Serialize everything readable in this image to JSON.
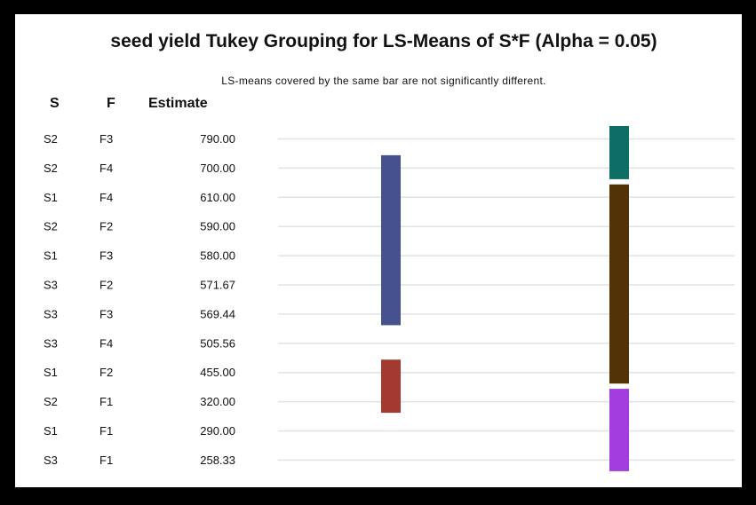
{
  "chart_data": {
    "type": "table",
    "title": "seed yield Tukey Grouping for LS-Means of S*F (Alpha = 0.05)",
    "subtitle": "LS-means covered by the same bar are not significantly different.",
    "columns": [
      "S",
      "F",
      "Estimate"
    ],
    "rows": [
      {
        "S": "S2",
        "F": "F3",
        "Estimate": "790.00"
      },
      {
        "S": "S2",
        "F": "F4",
        "Estimate": "700.00"
      },
      {
        "S": "S1",
        "F": "F4",
        "Estimate": "610.00"
      },
      {
        "S": "S2",
        "F": "F2",
        "Estimate": "590.00"
      },
      {
        "S": "S1",
        "F": "F3",
        "Estimate": "580.00"
      },
      {
        "S": "S3",
        "F": "F2",
        "Estimate": "571.67"
      },
      {
        "S": "S3",
        "F": "F3",
        "Estimate": "569.44"
      },
      {
        "S": "S3",
        "F": "F4",
        "Estimate": "505.56"
      },
      {
        "S": "S1",
        "F": "F2",
        "Estimate": "455.00"
      },
      {
        "S": "S2",
        "F": "F1",
        "Estimate": "320.00"
      },
      {
        "S": "S1",
        "F": "F1",
        "Estimate": "290.00"
      },
      {
        "S": "S3",
        "F": "F1",
        "Estimate": "258.33"
      }
    ],
    "groups": [
      {
        "column": 1,
        "from_row": 1,
        "to_row": 6,
        "color": "#45528f"
      },
      {
        "column": 1,
        "from_row": 8,
        "to_row": 9,
        "color": "#a43a2f"
      },
      {
        "column": 2,
        "from_row": 0,
        "to_row": 1,
        "color": "#0c6e64"
      },
      {
        "column": 2,
        "from_row": 2,
        "to_row": 8,
        "color": "#523307"
      },
      {
        "column": 2,
        "from_row": 9,
        "to_row": 11,
        "color": "#a43de0"
      }
    ],
    "grid": true
  }
}
